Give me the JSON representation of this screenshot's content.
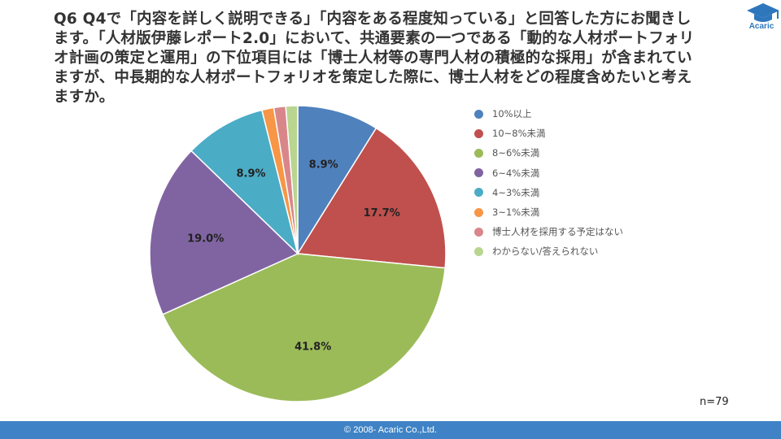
{
  "header": {
    "question": "Q6 Q4で「内容を詳しく説明できる」「内容をある程度知っている」と回答した方にお聞きします。「人材版伊藤レポート2.0」において、共通要素の一つである「動的な人材ポートフォリオ計画の策定と運用」の下位項目には「博士人材等の専門人材の積極的な採用」が含まれていますが、中長期的な人材ポートフォリオを策定した際に、博士人材をどの程度含めたいと考えますか。",
    "logo_text": "Acaric"
  },
  "chart_data": {
    "type": "pie",
    "start_angle_deg": 0,
    "direction": "clockwise",
    "slices": [
      {
        "label": "10%以上",
        "value": 8.9,
        "value_label": "8.9%",
        "color": "#4f81bd"
      },
      {
        "label": "10~8%未満",
        "value": 17.7,
        "value_label": "17.7%",
        "color": "#c0504d"
      },
      {
        "label": "8~6%未満",
        "value": 41.8,
        "value_label": "41.8%",
        "color": "#9bbb59"
      },
      {
        "label": "6~4%未満",
        "value": 19.0,
        "value_label": "19.0%",
        "color": "#8064a2"
      },
      {
        "label": "4~3%未満",
        "value": 8.9,
        "value_label": "8.9%",
        "color": "#4bacc6"
      },
      {
        "label": "3~1%未満",
        "value": 1.3,
        "value_label": "",
        "color": "#f79646"
      },
      {
        "label": "博士人材を採用する予定はない",
        "value": 1.3,
        "value_label": "",
        "color": "#d9868a"
      },
      {
        "label": "わからない/答えられない",
        "value": 1.3,
        "value_label": "",
        "color": "#b9d58f"
      }
    ],
    "legend_position": "right"
  },
  "sample_size": "n=79",
  "footer": {
    "copyright": "© 2008- Acaric Co.,Ltd."
  }
}
